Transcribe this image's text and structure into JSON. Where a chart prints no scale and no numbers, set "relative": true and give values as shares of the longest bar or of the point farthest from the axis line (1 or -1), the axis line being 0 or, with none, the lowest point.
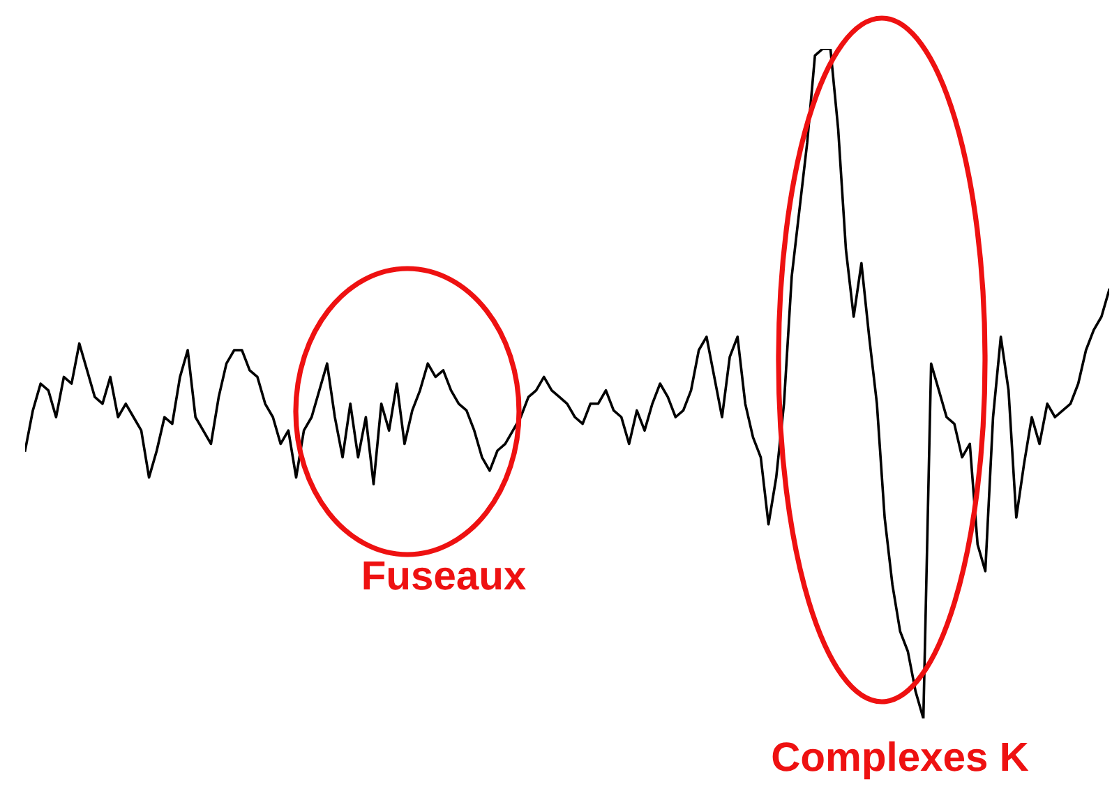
{
  "chart_data": {
    "type": "line",
    "relative": true,
    "marker": "none",
    "line_style": "solid",
    "annotations": [
      "Fuseaux",
      "Complexes K"
    ],
    "categories": [
      null,
      null,
      null,
      null,
      null,
      null,
      null,
      null,
      null,
      null,
      null,
      null,
      null,
      null,
      null,
      null,
      null,
      null,
      null,
      null,
      null,
      null,
      null,
      null,
      null,
      null,
      null,
      null,
      null,
      null,
      null,
      null,
      null,
      null,
      null,
      null,
      null,
      null,
      null,
      null,
      null,
      null,
      null,
      null,
      null,
      null,
      null,
      null,
      null,
      null,
      null,
      null,
      null,
      null,
      null,
      null,
      null,
      null,
      null,
      null,
      null,
      null,
      null,
      null,
      null,
      null,
      null,
      null,
      null,
      null,
      null,
      null,
      null,
      null,
      null,
      null,
      null,
      null,
      null,
      null,
      null,
      null,
      null,
      null,
      null,
      null,
      null,
      null,
      null,
      null,
      null,
      null,
      null,
      null,
      null,
      null,
      null,
      null,
      null,
      null,
      null,
      null,
      null,
      null,
      null,
      null,
      null,
      null,
      null,
      null,
      null,
      null,
      null,
      null,
      null,
      null,
      null,
      null,
      null,
      null,
      null,
      null,
      null,
      null,
      null,
      null,
      null,
      null,
      null,
      null,
      null,
      null,
      null,
      null,
      null,
      null,
      null,
      null,
      null,
      null,
      null
    ],
    "series": [
      {
        "color": "#000000",
        "values": [
          0.4,
          0.46,
          0.5,
          0.49,
          0.45,
          0.51,
          0.5,
          0.56,
          0.52,
          0.48,
          0.47,
          0.51,
          0.45,
          0.47,
          0.45,
          0.43,
          0.36,
          0.4,
          0.45,
          0.44,
          0.51,
          0.55,
          0.45,
          0.43,
          0.41,
          0.48,
          0.53,
          0.55,
          0.55,
          0.52,
          0.51,
          0.47,
          0.45,
          0.41,
          0.43,
          0.36,
          0.43,
          0.45,
          0.49,
          0.53,
          0.45,
          0.39,
          0.47,
          0.39,
          0.45,
          0.35,
          0.47,
          0.43,
          0.5,
          0.41,
          0.46,
          0.49,
          0.53,
          0.51,
          0.52,
          0.49,
          0.47,
          0.46,
          0.43,
          0.39,
          0.37,
          0.4,
          0.41,
          0.43,
          0.45,
          0.48,
          0.49,
          0.51,
          0.49,
          0.48,
          0.47,
          0.45,
          0.44,
          0.47,
          0.47,
          0.49,
          0.46,
          0.45,
          0.41,
          0.46,
          0.43,
          0.47,
          0.5,
          0.48,
          0.45,
          0.46,
          0.49,
          0.55,
          0.57,
          0.51,
          0.45,
          0.54,
          0.57,
          0.47,
          0.42,
          0.39,
          0.29,
          0.36,
          0.47,
          0.66,
          0.76,
          0.86,
          0.99,
          1,
          1,
          0.88,
          0.7,
          0.6,
          0.68,
          0.57,
          0.47,
          0.3,
          0.2,
          0.13,
          0.1,
          0.04,
          0,
          0.53,
          0.49,
          0.45,
          0.44,
          0.39,
          0.41,
          0.26,
          0.22,
          0.45,
          0.57,
          0.49,
          0.3,
          0.38,
          0.45,
          0.41,
          0.47,
          0.45,
          0.46,
          0.47,
          0.5,
          0.55,
          0.58,
          0.6,
          0.64
        ]
      }
    ]
  }
}
